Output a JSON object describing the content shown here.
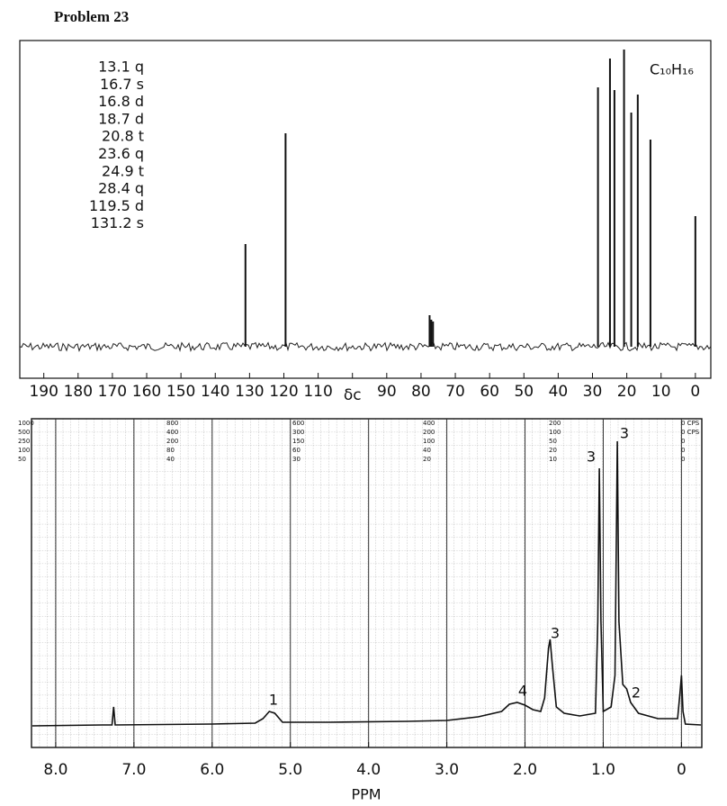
{
  "header": {
    "title": "Problem 23"
  },
  "chart_data": [
    {
      "type": "stick",
      "formula": "C₁₀H₁₆",
      "annotations": [
        "13.1 q",
        "16.7 s",
        "16.8 d",
        "18.7 d",
        "20.8 t",
        "23.6 q",
        "24.9 t",
        "28.4 q",
        "119.5 d",
        "131.2 s"
      ],
      "x": [
        131.2,
        119.5,
        77.5,
        77.0,
        76.5,
        28.4,
        24.9,
        23.6,
        20.8,
        18.7,
        16.8,
        13.1,
        0
      ],
      "values": [
        114,
        237,
        35,
        30,
        28,
        288,
        320,
        285,
        330,
        260,
        280,
        230,
        145
      ],
      "color": "#111111",
      "xlim": [
        197,
        -4.5
      ],
      "ylim": [
        0,
        340
      ],
      "xticks": [
        190,
        180,
        170,
        160,
        150,
        140,
        130,
        120,
        110,
        {
          "value": 100,
          "label": "δc"
        },
        90,
        80,
        70,
        60,
        50,
        40,
        30,
        20,
        10,
        0
      ]
    },
    {
      "type": "line",
      "x_label": "PPM",
      "sweep_labels": [
        [
          "1000",
          "500",
          "250",
          "100",
          "50"
        ],
        [
          "800",
          "400",
          "200",
          "80",
          "40"
        ],
        [
          "600",
          "300",
          "150",
          "60",
          "30"
        ],
        [
          "400",
          "200",
          "100",
          "40",
          "20"
        ],
        [
          "200",
          "100",
          "50",
          "20",
          "10"
        ],
        [
          "0 CPS",
          "0 CPS",
          "0",
          "0",
          "0"
        ]
      ],
      "integrals": [
        "1",
        "4",
        "3",
        "3",
        "3",
        "2"
      ],
      "x": [
        8.3,
        7.4,
        7.28,
        7.26,
        7.24,
        6.0,
        5.45,
        5.35,
        5.27,
        5.2,
        5.1,
        4.5,
        3.5,
        3.0,
        2.6,
        2.3,
        2.2,
        2.1,
        2.0,
        1.9,
        1.8,
        1.75,
        1.7,
        1.68,
        1.65,
        1.6,
        1.5,
        1.3,
        1.1,
        1.07,
        1.05,
        1.03,
        1.0,
        0.9,
        0.85,
        0.82,
        0.8,
        0.75,
        0.7,
        0.65,
        0.55,
        0.3,
        0.05,
        0.02,
        0,
        -0.02,
        -0.05,
        -0.25
      ],
      "values": [
        4,
        5,
        5,
        25,
        5,
        6,
        7,
        12,
        20,
        18,
        8,
        8,
        9,
        10,
        14,
        20,
        28,
        30,
        27,
        22,
        20,
        35,
        90,
        100,
        70,
        25,
        18,
        15,
        18,
        120,
        290,
        120,
        20,
        25,
        60,
        320,
        120,
        50,
        45,
        30,
        18,
        12,
        12,
        40,
        60,
        20,
        6,
        5
      ],
      "color": "#111111",
      "grid": true,
      "xlim": [
        8.31,
        -0.26
      ],
      "ylim": [
        0,
        345
      ],
      "xticks": [
        {
          "value": 8,
          "label": "8.0"
        },
        {
          "value": 7,
          "label": "7.0"
        },
        {
          "value": 6,
          "label": "6.0"
        },
        {
          "value": 5,
          "label": "5.0"
        },
        {
          "value": 4,
          "label": "4.0"
        },
        {
          "value": 3,
          "label": "3.0"
        },
        {
          "value": 2,
          "label": "2.0"
        },
        {
          "value": 1,
          "label": "1.0"
        },
        0
      ]
    }
  ]
}
